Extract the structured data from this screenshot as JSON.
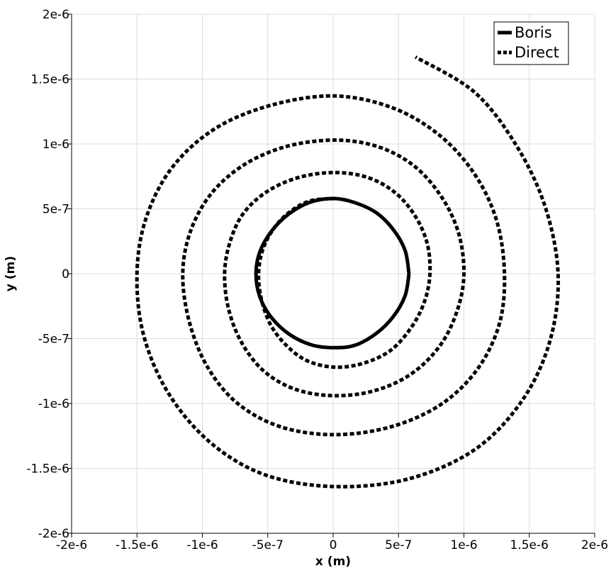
{
  "chart_data": {
    "type": "line",
    "title": "",
    "xlabel": "x (m)",
    "ylabel": "y (m)",
    "xlim": [
      -2e-06,
      2e-06
    ],
    "ylim": [
      -2e-06,
      2e-06
    ],
    "grid": true,
    "legend_position": "top-right",
    "x_ticks": [
      -2e-06,
      -1.5e-06,
      -1e-06,
      -5e-07,
      0,
      5e-07,
      1e-06,
      1.5e-06,
      2e-06
    ],
    "y_ticks": [
      -2e-06,
      -1.5e-06,
      -1e-06,
      -5e-07,
      0,
      5e-07,
      1e-06,
      1.5e-06,
      2e-06
    ],
    "x_tick_labels": [
      "-2e-6",
      "-1.5e-6",
      "-1e-6",
      "-5e-7",
      "0",
      "5e-7",
      "1e-6",
      "1.5e-6",
      "2e-6"
    ],
    "y_tick_labels": [
      "-2e-6",
      "-1.5e-6",
      "-1e-6",
      "-5e-7",
      "0",
      "5e-7",
      "1e-6",
      "1.5e-6",
      "2e-6"
    ],
    "series": [
      {
        "name": "Boris",
        "style": "solid",
        "color": "#000000",
        "x": [
          5.8e-07,
          5.5e-07,
          4.6e-07,
          3.3e-07,
          1.6e-07,
          0.0,
          -1.8e-07,
          -3.4e-07,
          -4.7e-07,
          -5.6e-07,
          -5.9e-07,
          -5.6e-07,
          -4.7e-07,
          -3.3e-07,
          -1.6e-07,
          1e-08,
          1.7e-07,
          3.3e-07,
          4.6e-07,
          5.5e-07,
          5.8e-07
        ],
        "y": [
          0.0,
          1.8e-07,
          3.4e-07,
          4.7e-07,
          5.5e-07,
          5.8e-07,
          5.5e-07,
          4.6e-07,
          3.3e-07,
          1.7e-07,
          0.0,
          -1.8e-07,
          -3.4e-07,
          -4.7e-07,
          -5.5e-07,
          -5.7e-07,
          -5.5e-07,
          -4.6e-07,
          -3.3e-07,
          -1.7e-07,
          0.0
        ]
      },
      {
        "name": "Direct",
        "style": "dashed",
        "color": "#000000",
        "x": [
          1e-08,
          -1.8e-07,
          -3.4e-07,
          -4.6e-07,
          -5.4e-07,
          -5.7e-07,
          -5.5e-07,
          -4.8e-07,
          -3.6e-07,
          -2e-07,
          1e-08,
          2.3e-07,
          4.4e-07,
          6e-07,
          7e-07,
          7.4e-07,
          7.2e-07,
          6.3e-07,
          4.8e-07,
          2.7e-07,
          1e-08,
          -2.7e-07,
          -5.1e-07,
          -6.9e-07,
          -7.9e-07,
          -8.3e-07,
          -8e-07,
          -7e-07,
          -5.3e-07,
          -2.9e-07,
          1e-08,
          3.2e-07,
          6e-07,
          8.2e-07,
          9.5e-07,
          1e-06,
          9.6e-07,
          8.3e-07,
          6.2e-07,
          3.4e-07,
          1e-08,
          -3.6e-07,
          -6.8e-07,
          -9.3e-07,
          -1.09e-06,
          -1.15e-06,
          -1.1e-06,
          -9.6e-07,
          -7.3e-07,
          -4e-07,
          1e-08,
          4.4e-07,
          8.2e-07,
          1.1e-06,
          1.27e-06,
          1.31e-06,
          1.25e-06,
          1.08e-06,
          8.1e-07,
          4.5e-07,
          1e-08,
          -4.7e-07,
          -9e-07,
          -1.23e-06,
          -1.43e-06,
          -1.5e-06,
          -1.45e-06,
          -1.26e-06,
          -9.4e-07,
          -5.2e-07,
          1e-08,
          5.8e-07,
          1.09e-06,
          1.45e-06,
          1.66e-06,
          1.72e-06,
          1.62e-06,
          1.4e-06,
          1.08e-06,
          6.3e-07
        ],
        "y": [
          5.8e-07,
          5.6e-07,
          4.7e-07,
          3.4e-07,
          1.8e-07,
          0.0,
          -1.9e-07,
          -3.9e-07,
          -5.5e-07,
          -6.7e-07,
          -7.2e-07,
          -6.9e-07,
          -5.9e-07,
          -4.1e-07,
          -2.1e-07,
          0.0,
          2.3e-07,
          4.4e-07,
          6.2e-07,
          7.4e-07,
          7.8e-07,
          7.4e-07,
          6.3e-07,
          4.6e-07,
          2.4e-07,
          0.0,
          -2.7e-07,
          -5.3e-07,
          -7.5e-07,
          -8.9e-07,
          -9.4e-07,
          -9e-07,
          -7.7e-07,
          -5.5e-07,
          -2.8e-07,
          0.0,
          3.1e-07,
          5.9e-07,
          8.3e-07,
          9.8e-07,
          1.03e-06,
          9.8e-07,
          8.4e-07,
          6.2e-07,
          3.3e-07,
          0.0,
          -3.7e-07,
          -7.2e-07,
          -1e-06,
          -1.18e-06,
          -1.24e-06,
          -1.18e-06,
          -1.01e-06,
          -7.4e-07,
          -3.9e-07,
          0.0,
          4.1e-07,
          7.7e-07,
          1.07e-06,
          1.28e-06,
          1.37e-06,
          1.3e-06,
          1.12e-06,
          8.2e-07,
          4.3e-07,
          0.0,
          -4.7e-07,
          -9.2e-07,
          -1.3e-06,
          -1.55e-06,
          -1.64e-06,
          -1.58e-06,
          -1.35e-06,
          -9.7e-07,
          -5.1e-07,
          0.0,
          5.2e-07,
          9.9e-07,
          1.4e-06,
          1.67e-06
        ]
      }
    ]
  }
}
